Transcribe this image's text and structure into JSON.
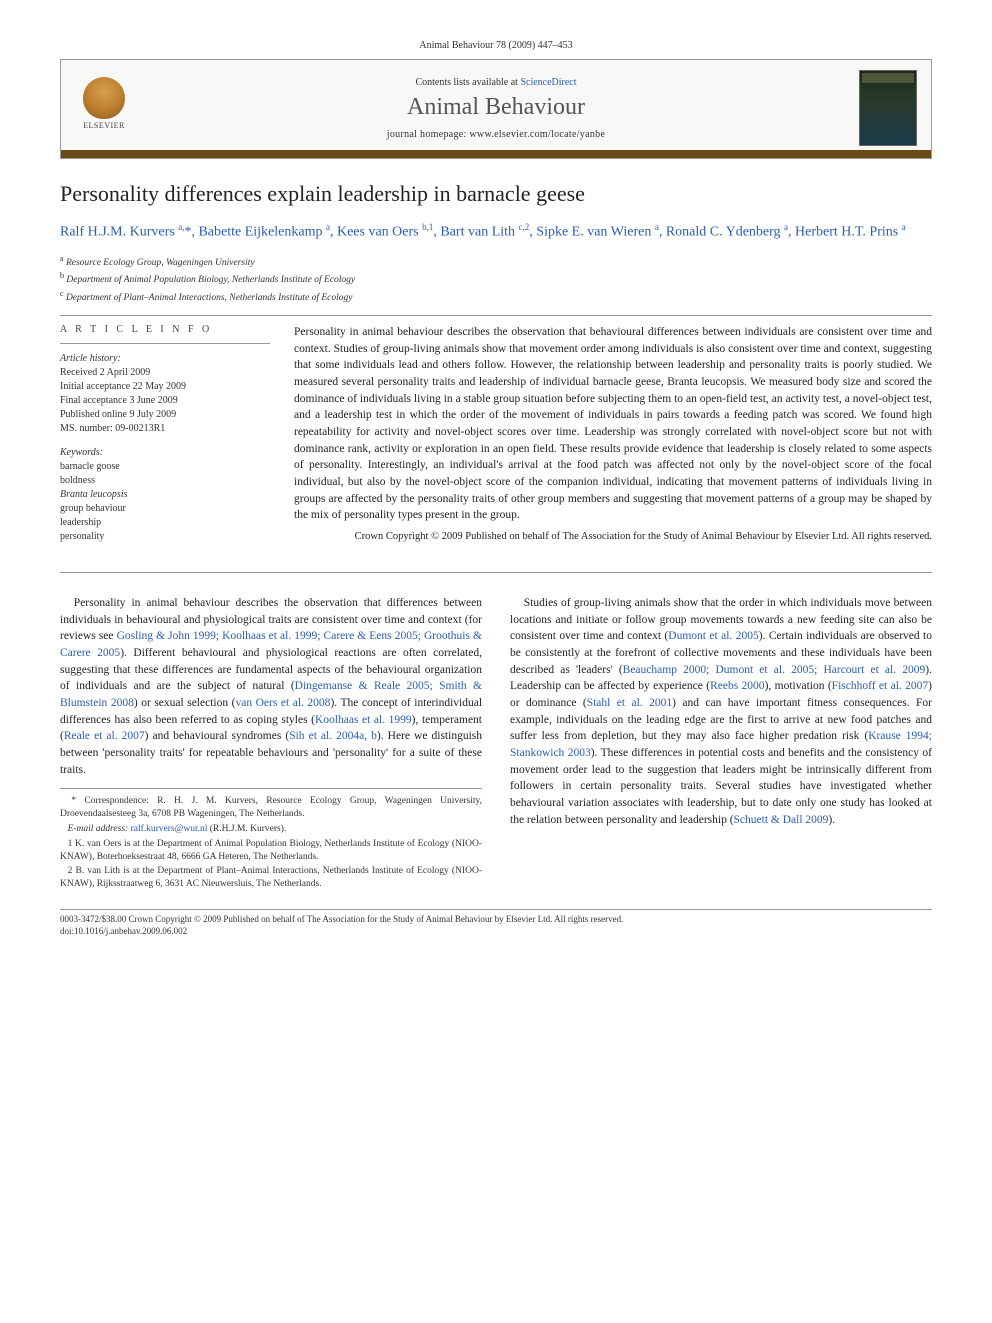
{
  "page_header": "Animal Behaviour 78 (2009) 447–453",
  "header": {
    "contents_prefix": "Contents lists available at ",
    "contents_link": "ScienceDirect",
    "journal": "Animal Behaviour",
    "homepage_label": "journal homepage: ",
    "homepage_url": "www.elsevier.com/locate/yanbe",
    "elsevier": "ELSEVIER"
  },
  "title": "Personality differences explain leadership in barnacle geese",
  "authors_html": "Ralf H.J.M. Kurvers <sup>a,</sup>*, Babette Eijkelenkamp <sup>a</sup>, Kees van Oers <sup>b,1</sup>, Bart van Lith <sup>c,2</sup>, Sipke E. van Wieren <sup>a</sup>, Ronald C. Ydenberg <sup>a</sup>, Herbert H.T. Prins <sup>a</sup>",
  "affiliations": [
    "a Resource Ecology Group, Wageningen University",
    "b Department of Animal Population Biology, Netherlands Institute of Ecology",
    "c Department of Plant–Animal Interactions, Netherlands Institute of Ecology"
  ],
  "article_info_heading": "A R T I C L E   I N F O",
  "history_label": "Article history:",
  "history": [
    "Received 2 April 2009",
    "Initial acceptance 22 May 2009",
    "Final acceptance 3 June 2009",
    "Published online 9 July 2009",
    "MS. number: 09-00213R1"
  ],
  "keywords_label": "Keywords:",
  "keywords": [
    "barnacle goose",
    "boldness",
    "Branta leucopsis",
    "group behaviour",
    "leadership",
    "personality"
  ],
  "abstract": "Personality in animal behaviour describes the observation that behavioural differences between individuals are consistent over time and context. Studies of group-living animals show that movement order among individuals is also consistent over time and context, suggesting that some individuals lead and others follow. However, the relationship between leadership and personality traits is poorly studied. We measured several personality traits and leadership of individual barnacle geese, Branta leucopsis. We measured body size and scored the dominance of individuals living in a stable group situation before subjecting them to an open-field test, an activity test, a novel-object test, and a leadership test in which the order of the movement of individuals in pairs towards a feeding patch was scored. We found high repeatability for activity and novel-object scores over time. Leadership was strongly correlated with novel-object score but not with dominance rank, activity or exploration in an open field. These results provide evidence that leadership is closely related to some aspects of personality. Interestingly, an individual's arrival at the food patch was affected not only by the novel-object score of the focal individual, but also by the novel-object score of the companion individual, indicating that movement patterns of individuals living in groups are affected by the personality traits of other group members and suggesting that movement patterns of a group may be shaped by the mix of personality types present in the group.",
  "abstract_copyright": "Crown Copyright © 2009 Published on behalf of The Association for the Study of Animal Behaviour by Elsevier Ltd. All rights reserved.",
  "body": {
    "p1_a": "Personality in animal behaviour describes the observation that differences between individuals in behavioural and physiological traits are consistent over time and context (for reviews see ",
    "p1_c1": "Gosling & John 1999; Koolhaas et al. 1999; Carere & Eens 2005; Groothuis & Carere 2005",
    "p1_b": "). Different behavioural and physiological reactions are often correlated, suggesting that these differences are fundamental aspects of the behavioural organization of individuals and are the subject of natural (",
    "p1_c2": "Dingemanse & Reale 2005; Smith & Blumstein 2008",
    "p1_c": ") or sexual selection (",
    "p1_c3": "van Oers et al. 2008",
    "p1_d": "). The concept of interindividual differences has also been referred to as coping styles (",
    "p1_c4": "Koolhaas et al. 1999",
    "p1_e": "), temperament (",
    "p1_c5": "Reale et al. 2007",
    "p1_f": ") and behavioural syndromes (",
    "p1_c6": "Sih et al. 2004a, b",
    "p1_g": "). Here we distinguish between 'personality traits' for repeatable behaviours and 'personality' for a suite of these traits.",
    "p2_a": "Studies of group-living animals show that the order in which individuals move between locations and initiate or follow group movements towards a new feeding site can also be consistent over time and context (",
    "p2_c1": "Dumont et al. 2005",
    "p2_b": "). Certain individuals are observed to be consistently at the forefront of collective movements and these individuals have been described as 'leaders' (",
    "p2_c2": "Beauchamp 2000; Dumont et al. 2005; Harcourt et al. 2009",
    "p2_c": "). Leadership can be affected by experience (",
    "p2_c3": "Reebs 2000",
    "p2_d": "), motivation (",
    "p2_c4": "Fischhoff et al. 2007",
    "p2_e": ") or dominance (",
    "p2_c5": "Stahl et al. 2001",
    "p2_f": ") and can have important fitness consequences. For example, individuals on the leading edge are the first to arrive at new food patches and suffer less from depletion, but they may also face higher predation risk (",
    "p2_c6": "Krause 1994; Stankowich 2003",
    "p2_g": "). These differences in potential costs and benefits and the consistency of movement order lead to the suggestion that leaders might be intrinsically different from followers in certain personality traits. Several studies have investigated whether behavioural variation associates with leadership, but to date only one study has looked at the relation between personality and leadership (",
    "p2_c7": "Schuett & Dall 2009",
    "p2_h": ")."
  },
  "footnotes": {
    "corr": "* Correspondence: R. H. J. M. Kurvers, Resource Ecology Group, Wageningen University, Droevendaalsesteeg 3a, 6708 PB Wageningen, The Netherlands.",
    "email_label": "E-mail address: ",
    "email": "ralf.kurvers@wur.nl",
    "email_suffix": " (R.H.J.M. Kurvers).",
    "n1": "1 K. van Oers is at the Department of Animal Population Biology, Netherlands Institute of Ecology (NIOO-KNAW), Boterhoeksestraat 48, 6666 GA Heteren, The Netherlands.",
    "n2": "2 B. van Lith is at the Department of Plant–Animal Interactions, Netherlands Institute of Ecology (NIOO-KNAW), Rijksstraatweg 6, 3631 AC Nieuwersluis, The Netherlands."
  },
  "footer": {
    "line1": "0003-3472/$38.00  Crown Copyright © 2009 Published on behalf of The Association for the Study of Animal Behaviour by Elsevier Ltd. All rights reserved.",
    "line2": "doi:10.1016/j.anbehav.2009.06.002"
  },
  "colors": {
    "link": "#2a5db0",
    "bar": "#6b4a1a",
    "rule": "#999999",
    "text": "#222222"
  }
}
